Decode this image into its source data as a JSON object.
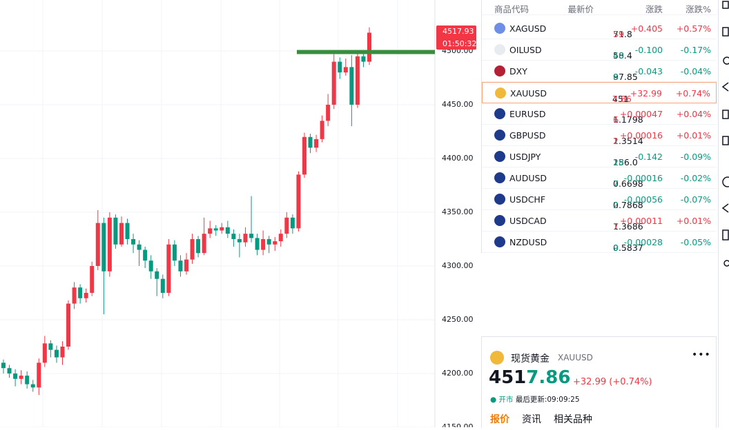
{
  "chart_data": {
    "type": "candlestick",
    "open": [
      4210,
      4205,
      4200,
      4195,
      4198,
      4190,
      4187,
      4210,
      4228,
      4222,
      4215,
      4225,
      4265,
      4280,
      4270,
      4275,
      4300,
      4340,
      4295,
      4345,
      4320,
      4340,
      4325,
      4320,
      4315,
      4305,
      4295,
      4288,
      4275,
      4320,
      4305,
      4295,
      4306,
      4325,
      4312,
      4330,
      4335,
      4333,
      4336,
      4330,
      4325,
      4322,
      4330,
      4326,
      4315,
      4325,
      4320,
      4323,
      4330,
      4345,
      4335,
      4385,
      4420,
      4410,
      4418,
      4435,
      4450,
      4490,
      4480,
      4485,
      4450,
      4495,
      4490
    ],
    "high": [
      4213,
      4208,
      4204,
      4203,
      4202,
      4194,
      4214,
      4235,
      4231,
      4226,
      4230,
      4268,
      4285,
      4283,
      4279,
      4304,
      4352,
      4345,
      4350,
      4348,
      4346,
      4344,
      4330,
      4324,
      4318,
      4310,
      4298,
      4292,
      4325,
      4324,
      4310,
      4312,
      4330,
      4328,
      4345,
      4342,
      4338,
      4340,
      4342,
      4334,
      4330,
      4336,
      4365,
      4330,
      4333,
      4328,
      4327,
      4334,
      4350,
      4348,
      4388,
      4424,
      4423,
      4422,
      4440,
      4460,
      4497,
      4494,
      4493,
      4496,
      4500,
      4498,
      4522
    ],
    "low": [
      4200,
      4196,
      4188,
      4190,
      4186,
      4183,
      4180,
      4206,
      4215,
      4210,
      4208,
      4222,
      4260,
      4265,
      4266,
      4272,
      4296,
      4255,
      4290,
      4316,
      4318,
      4320,
      4312,
      4300,
      4298,
      4288,
      4272,
      4270,
      4272,
      4300,
      4290,
      4292,
      4302,
      4308,
      4310,
      4326,
      4328,
      4330,
      4326,
      4318,
      4308,
      4318,
      4322,
      4310,
      4310,
      4312,
      4314,
      4318,
      4326,
      4330,
      4332,
      4382,
      4405,
      4406,
      4415,
      4430,
      4446,
      4474,
      4477,
      4430,
      4447,
      4485,
      4487
    ],
    "close": [
      4205,
      4200,
      4195,
      4198,
      4190,
      4187,
      4210,
      4228,
      4222,
      4215,
      4225,
      4265,
      4280,
      4270,
      4275,
      4300,
      4340,
      4295,
      4345,
      4320,
      4340,
      4325,
      4320,
      4315,
      4305,
      4295,
      4288,
      4275,
      4320,
      4305,
      4295,
      4306,
      4325,
      4312,
      4330,
      4335,
      4333,
      4336,
      4330,
      4325,
      4322,
      4330,
      4326,
      4315,
      4325,
      4320,
      4323,
      4330,
      4345,
      4335,
      4385,
      4420,
      4410,
      4418,
      4435,
      4450,
      4490,
      4480,
      4485,
      4450,
      4495,
      4490,
      4517
    ],
    "up_color": "#f23645",
    "down_color": "#089981",
    "ylim": [
      4150,
      4547.4
    ],
    "yticks": [
      {
        "value": 4150,
        "label": "4150.00"
      },
      {
        "value": 4200,
        "label": "4200.00"
      },
      {
        "value": 4250,
        "label": "4250.00"
      },
      {
        "value": 4300,
        "label": "4300.00"
      },
      {
        "value": 4350,
        "label": "4350.00"
      },
      {
        "value": 4400,
        "label": "4400.00"
      },
      {
        "value": 4450,
        "label": "4450.00"
      },
      {
        "value": 4500,
        "label": "4500.00"
      }
    ],
    "level": 4499,
    "level_color": "#388e3c",
    "last_price_label": "4517.93",
    "countdown": "01:50:32"
  },
  "watchlist": {
    "header": [
      "商品代码",
      "最新价",
      "涨跌",
      "涨跌%"
    ],
    "rows": [
      {
        "symbol": "XAGUSD",
        "price": [
          "71.8",
          "59"
        ],
        "change": "+0.405",
        "pct": "+0.57%"
      },
      {
        "symbol": "OILUSD",
        "price": [
          "58.4",
          "40"
        ],
        "change": "-0.100",
        "pct": "-0.17%"
      },
      {
        "symbol": "DXY",
        "price": [
          "97.85",
          "8"
        ],
        "change": "-0.043",
        "pct": "-0.04%"
      },
      {
        "symbol": "XAUUSD",
        "price": [
          "451",
          "7.86"
        ],
        "change": "+32.99",
        "pct": "+0.74%"
      },
      {
        "symbol": "EURUSD",
        "price": [
          "1.1798",
          "6"
        ],
        "change": "+0.00047",
        "pct": "+0.04%"
      },
      {
        "symbol": "GBPUSD",
        "price": [
          "1.3514",
          "2"
        ],
        "change": "+0.00016",
        "pct": "+0.01%"
      },
      {
        "symbol": "USDJPY",
        "price": [
          "156.0",
          "28"
        ],
        "change": "-0.142",
        "pct": "-0.09%"
      },
      {
        "symbol": "AUDUSD",
        "price": [
          "0.6698",
          "7"
        ],
        "change": "-0.00016",
        "pct": "-0.02%"
      },
      {
        "symbol": "USDCHF",
        "price": [
          "0.7868",
          "2"
        ],
        "change": "-0.00056",
        "pct": "-0.07%"
      },
      {
        "symbol": "USDCAD",
        "price": [
          "1.3686",
          "7"
        ],
        "change": "+0.00011",
        "pct": "+0.01%"
      },
      {
        "symbol": "NZDUSD",
        "price": [
          "0.5837",
          "9"
        ],
        "change": "-0.00028",
        "pct": "-0.05%"
      }
    ],
    "selected": 3
  },
  "detail": {
    "name": "现货黄金",
    "symbol": "XAUUSD",
    "price": [
      "451",
      "7.86"
    ],
    "change": "+32.99 (+0.74%)",
    "status": "开市",
    "updated": "最后更新:09:09:25",
    "tabs": [
      "报价",
      "资讯",
      "相关品种"
    ]
  }
}
